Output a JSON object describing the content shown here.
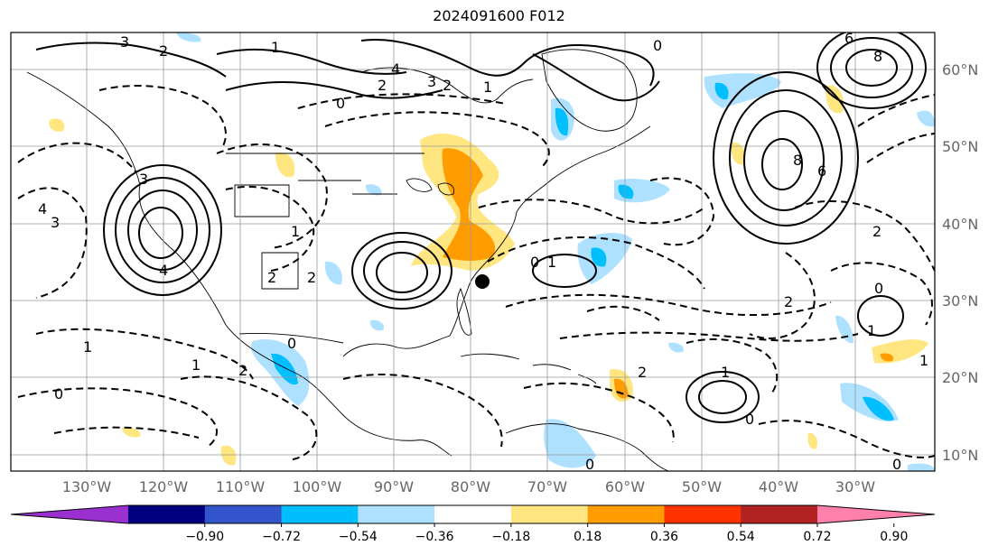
{
  "title": "2024091600 F012",
  "lon_labels": [
    "130°W",
    "120°W",
    "110°W",
    "100°W",
    "90°W",
    "80°W",
    "70°W",
    "60°W",
    "50°W",
    "40°W",
    "30°W"
  ],
  "lat_labels": [
    "60°N",
    "50°N",
    "40°N",
    "30°N",
    "20°N",
    "10°N"
  ],
  "colorbar": {
    "colors": [
      "#9b30d0",
      "#00007f",
      "#3355cc",
      "#00bfff",
      "#aee1ff",
      "#ffffff",
      "#ffe680",
      "#ff9c00",
      "#ff3300",
      "#b22222",
      "#ff80aa"
    ],
    "ticks": [
      "−0.90",
      "−0.72",
      "−0.54",
      "−0.36",
      "−0.18",
      "0.18",
      "0.36",
      "0.54",
      "0.72",
      "0.90"
    ]
  },
  "contour_labels": [
    "3",
    "2",
    "1",
    "0",
    "4",
    "2",
    "3",
    "2",
    "1",
    "0",
    "8",
    "6",
    "6",
    "8",
    "3",
    "4",
    "3",
    "4",
    "1",
    "2",
    "2",
    "1",
    "0",
    "2",
    "2",
    "1",
    "1",
    "0",
    "1",
    "0",
    "2",
    "0",
    "2",
    "1",
    "0",
    "1",
    "0",
    "0"
  ]
}
